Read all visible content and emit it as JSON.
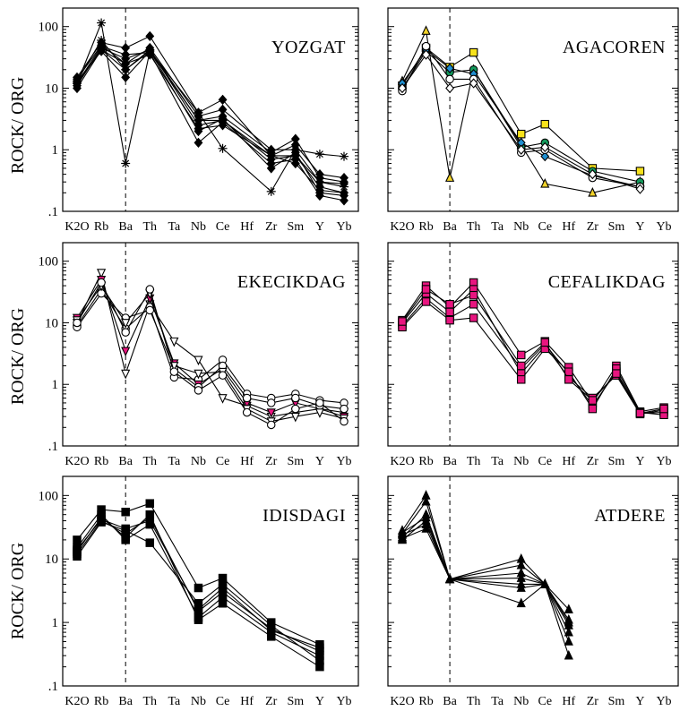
{
  "figure": {
    "y_axis_label": "ROCK/ ORG",
    "y_tick_labels": [
      "100",
      "10",
      "1",
      ".1"
    ],
    "y_tick_values": [
      100,
      10,
      1,
      0.1
    ],
    "categories": [
      "K2O",
      "Rb",
      "Ba",
      "Th",
      "Ta",
      "Nb",
      "Ce",
      "Hf",
      "Zr",
      "Sm",
      "Y",
      "Yb"
    ],
    "dashed_line_category": "Ba"
  },
  "chart_data": [
    {
      "type": "line",
      "title": "YOZGAT",
      "ylog": true,
      "ylim": [
        0.1,
        200
      ],
      "marker": "diamond",
      "series": [
        {
          "values": [
            12,
            42,
            20,
            40,
            null,
            3,
            3.5,
            null,
            0.9,
            1.5,
            0.35,
            0.3
          ]
        },
        {
          "values": [
            14,
            50,
            25,
            45,
            null,
            3.5,
            4.5,
            null,
            1.0,
            1.0,
            0.3,
            0.28
          ]
        },
        {
          "values": [
            11,
            45,
            30,
            42,
            null,
            2.5,
            3.0,
            null,
            0.7,
            0.8,
            0.25,
            0.2
          ]
        },
        {
          "values": [
            13,
            40,
            15,
            40,
            null,
            2.0,
            3.2,
            null,
            0.5,
            0.9,
            0.2,
            0.18
          ]
        },
        {
          "values": [
            15,
            55,
            45,
            70,
            null,
            4.0,
            6.5,
            null,
            0.8,
            1.2,
            0.4,
            0.35
          ]
        },
        {
          "values": [
            12,
            48,
            35,
            38,
            null,
            1.3,
            2.8,
            null,
            0.6,
            0.7,
            0.18,
            0.15
          ]
        },
        {
          "values": [
            10,
            42,
            25,
            35,
            null,
            2.2,
            2.5,
            null,
            0.8,
            0.6,
            0.22,
            0.2
          ]
        }
      ],
      "star_series": [
        {
          "values": [
            12,
            115,
            0.6,
            40,
            null,
            4.0,
            1.05,
            null,
            0.21,
            1.0,
            0.85,
            0.78
          ]
        },
        {
          "values": [
            13,
            60,
            20,
            42,
            null,
            3.0,
            3.0,
            null,
            0.8,
            0.8,
            0.3,
            0.25
          ]
        }
      ]
    },
    {
      "type": "line",
      "title": "AGACOREN",
      "ylog": true,
      "ylim": [
        0.1,
        200
      ],
      "series": [
        {
          "marker": "triangle",
          "color": "#f2d32a",
          "values": [
            13,
            85,
            0.35,
            20,
            null,
            1.2,
            0.28,
            null,
            0.2,
            null,
            0.3,
            null
          ]
        },
        {
          "marker": "square",
          "color": "#f7e21b",
          "values": [
            11,
            45,
            22,
            38,
            null,
            1.8,
            2.6,
            null,
            0.5,
            null,
            0.45,
            null
          ]
        },
        {
          "marker": "circle",
          "color": "#139a5c",
          "values": [
            10,
            40,
            18,
            20,
            null,
            1.1,
            1.3,
            null,
            0.45,
            null,
            0.3,
            null
          ]
        },
        {
          "marker": "diamond",
          "color": "#1f8fd0",
          "values": [
            12,
            42,
            21,
            17,
            null,
            1.3,
            0.78,
            null,
            0.38,
            null,
            0.25,
            null
          ]
        },
        {
          "marker": "circle",
          "color": "#ffffff",
          "values": [
            9,
            48,
            14,
            14,
            null,
            0.9,
            1.0,
            null,
            0.35,
            null,
            0.25,
            null
          ]
        },
        {
          "marker": "diamond",
          "color": "#ffffff",
          "values": [
            10,
            35,
            10,
            12,
            null,
            1.0,
            1.1,
            null,
            0.4,
            null,
            0.23,
            null
          ]
        }
      ]
    },
    {
      "type": "line",
      "title": "EKECIKDAG",
      "ylog": true,
      "ylim": [
        0.1,
        200
      ],
      "series": [
        {
          "marker": "triangle-down",
          "color": "#ffffff",
          "values": [
            10,
            65,
            1.5,
            20,
            5,
            2.5,
            0.6,
            0.45,
            0.3,
            0.35,
            0.4,
            0.35
          ]
        },
        {
          "marker": "circle",
          "color": "#ffffff",
          "values": [
            9,
            35,
            8,
            18,
            1.3,
            1.2,
            2.5,
            0.7,
            0.6,
            0.7,
            0.55,
            0.5
          ]
        },
        {
          "marker": "triangle-down",
          "color": "#e8157f",
          "values": [
            12,
            50,
            3.5,
            25,
            2.2,
            1.0,
            1.8,
            0.5,
            0.35,
            0.5,
            0.4,
            0.3
          ]
        },
        {
          "marker": "circle",
          "color": "#ffffff",
          "values": [
            8.5,
            30,
            12,
            16,
            1.8,
            0.9,
            2.0,
            0.6,
            0.5,
            0.6,
            0.45,
            0.4
          ]
        },
        {
          "marker": "triangle-down",
          "color": "#ffffff",
          "values": [
            11,
            40,
            10,
            30,
            2.0,
            1.5,
            1.6,
            0.4,
            0.25,
            0.3,
            0.35,
            0.28
          ]
        },
        {
          "marker": "circle",
          "color": "#ffffff",
          "values": [
            10,
            45,
            7,
            35,
            1.6,
            0.8,
            1.4,
            0.35,
            0.22,
            0.4,
            0.5,
            0.25
          ]
        }
      ]
    },
    {
      "type": "line",
      "title": "CEFALIKDAG",
      "ylog": true,
      "ylim": [
        0.1,
        200
      ],
      "marker": "square",
      "color": "#e8157f",
      "series": [
        {
          "values": [
            11,
            40,
            18,
            45,
            null,
            3.0,
            5.0,
            1.9,
            0.5,
            2.0,
            0.36,
            0.42
          ]
        },
        {
          "values": [
            9,
            25,
            12,
            20,
            null,
            1.8,
            4.5,
            1.5,
            0.45,
            1.6,
            0.34,
            0.35
          ]
        },
        {
          "values": [
            10,
            30,
            15,
            35,
            null,
            1.5,
            4.2,
            1.3,
            0.6,
            1.4,
            0.33,
            0.38
          ]
        },
        {
          "values": [
            8.5,
            22,
            11,
            12,
            null,
            1.2,
            3.8,
            1.6,
            0.4,
            1.8,
            0.35,
            0.32
          ]
        },
        {
          "values": [
            10.5,
            35,
            20,
            28,
            null,
            2.0,
            4.8,
            1.2,
            0.55,
            1.5,
            0.34,
            0.4
          ]
        }
      ]
    },
    {
      "type": "line",
      "title": "IDISDAGI",
      "ylog": true,
      "ylim": [
        0.1,
        200
      ],
      "marker": "square",
      "color": "#000000",
      "series": [
        {
          "values": [
            20,
            60,
            55,
            75,
            null,
            3.5,
            5.0,
            null,
            1.0,
            null,
            0.45,
            null
          ]
        },
        {
          "values": [
            12,
            40,
            25,
            45,
            null,
            1.5,
            3.0,
            null,
            0.8,
            null,
            0.35,
            null
          ]
        },
        {
          "values": [
            15,
            50,
            20,
            35,
            null,
            1.2,
            2.5,
            null,
            0.7,
            null,
            0.3,
            null
          ]
        },
        {
          "values": [
            11,
            38,
            28,
            18,
            null,
            2.0,
            4.0,
            null,
            0.9,
            null,
            0.25,
            null
          ]
        },
        {
          "values": [
            13,
            45,
            22,
            50,
            null,
            1.1,
            2.0,
            null,
            0.6,
            null,
            0.2,
            null
          ]
        },
        {
          "values": [
            14,
            42,
            30,
            40,
            null,
            1.6,
            3.5,
            null,
            0.75,
            null,
            0.4,
            null
          ]
        }
      ]
    },
    {
      "type": "line",
      "title": "ATDERE",
      "ylog": true,
      "ylim": [
        0.1,
        200
      ],
      "marker": "triangle",
      "color": "#000000",
      "series": [
        {
          "values": [
            28,
            100,
            4.8,
            null,
            null,
            10,
            4,
            1.6,
            null,
            null,
            null,
            null
          ]
        },
        {
          "values": [
            25,
            80,
            4.8,
            null,
            null,
            8,
            4,
            1.1,
            null,
            null,
            null,
            null
          ]
        },
        {
          "values": [
            22,
            50,
            4.8,
            null,
            null,
            6,
            4,
            0.9,
            null,
            null,
            null,
            null
          ]
        },
        {
          "values": [
            20,
            40,
            4.8,
            null,
            null,
            4,
            4,
            0.7,
            null,
            null,
            null,
            null
          ]
        },
        {
          "values": [
            24,
            35,
            4.8,
            null,
            null,
            3.5,
            4,
            0.5,
            null,
            null,
            null,
            null
          ]
        },
        {
          "values": [
            21,
            30,
            4.8,
            null,
            null,
            2.0,
            4,
            0.3,
            null,
            null,
            null,
            null
          ]
        },
        {
          "values": [
            26,
            45,
            4.8,
            null,
            null,
            5,
            4,
            1.0,
            null,
            null,
            null,
            null
          ]
        }
      ]
    }
  ]
}
